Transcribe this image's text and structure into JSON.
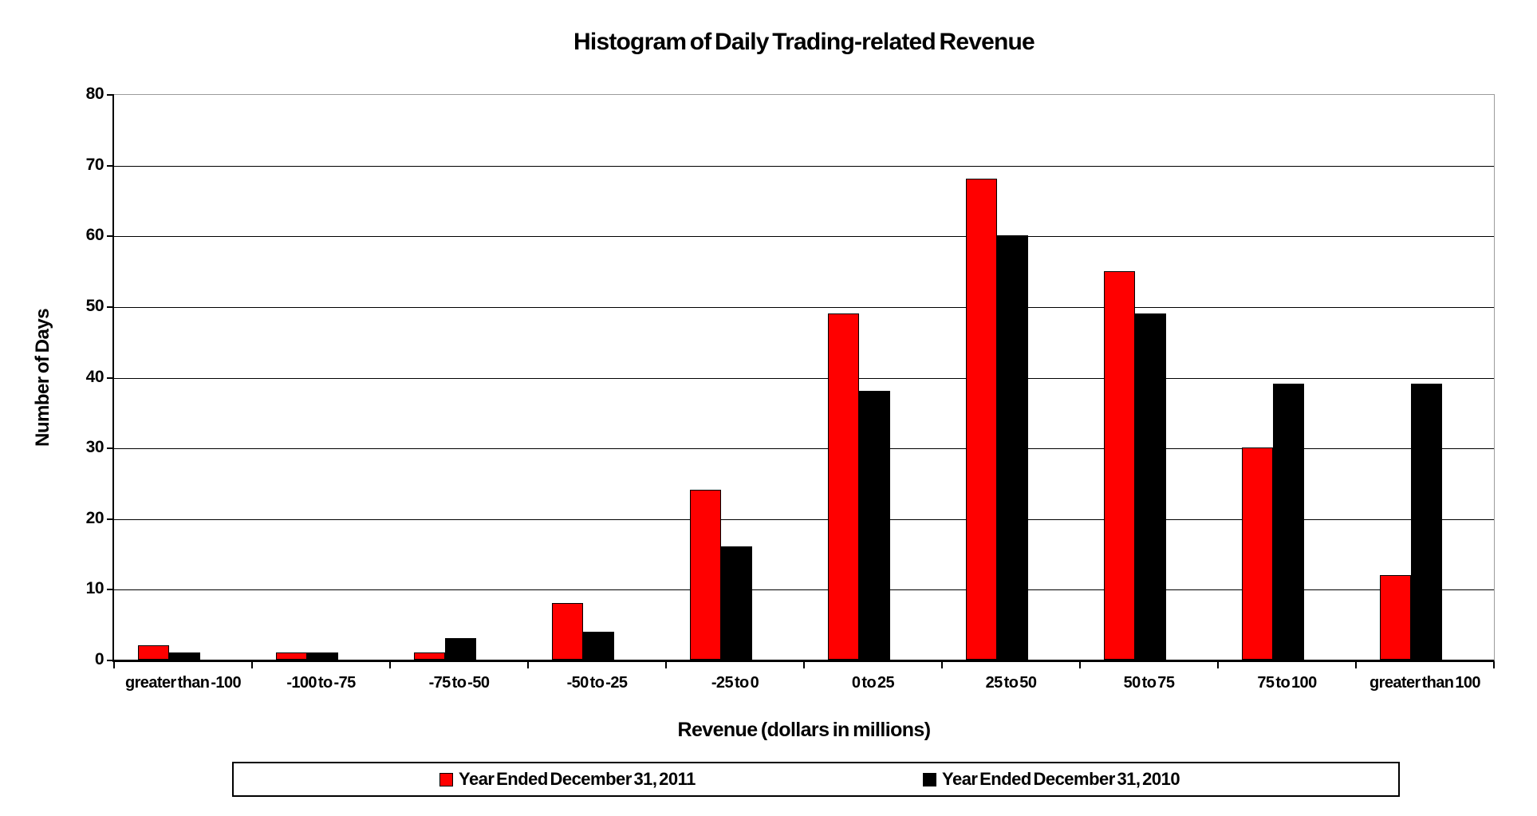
{
  "page": {
    "background": "#ffffff"
  },
  "colors": {
    "series_2011": "#ff0000",
    "series_2010": "#000000",
    "gridline": "#000000",
    "plot_border": "#9c9c9c",
    "axis": "#000000"
  },
  "chart_data": {
    "type": "bar",
    "title": "Histogram of Daily Trading-related Revenue",
    "xlabel": "Revenue (dollars in millions)",
    "ylabel": "Number of Days",
    "ylim": [
      0,
      80
    ],
    "ytick_step": 10,
    "grid": true,
    "legend_position": "bottom",
    "categories": [
      "greater than -100",
      "-100 to -75",
      "-75 to -50",
      "-50 to -25",
      "-25 to 0",
      "0 to 25",
      "25 to 50",
      "50 to 75",
      "75 to 100",
      "greater than 100"
    ],
    "series": [
      {
        "name": "Year Ended December 31, 2011",
        "color": "#ff0000",
        "values": [
          2,
          1,
          1,
          8,
          24,
          49,
          68,
          55,
          30,
          12
        ]
      },
      {
        "name": "Year Ended December 31, 2010",
        "color": "#000000",
        "values": [
          1,
          1,
          3,
          4,
          16,
          38,
          60,
          49,
          39,
          39
        ]
      }
    ]
  }
}
